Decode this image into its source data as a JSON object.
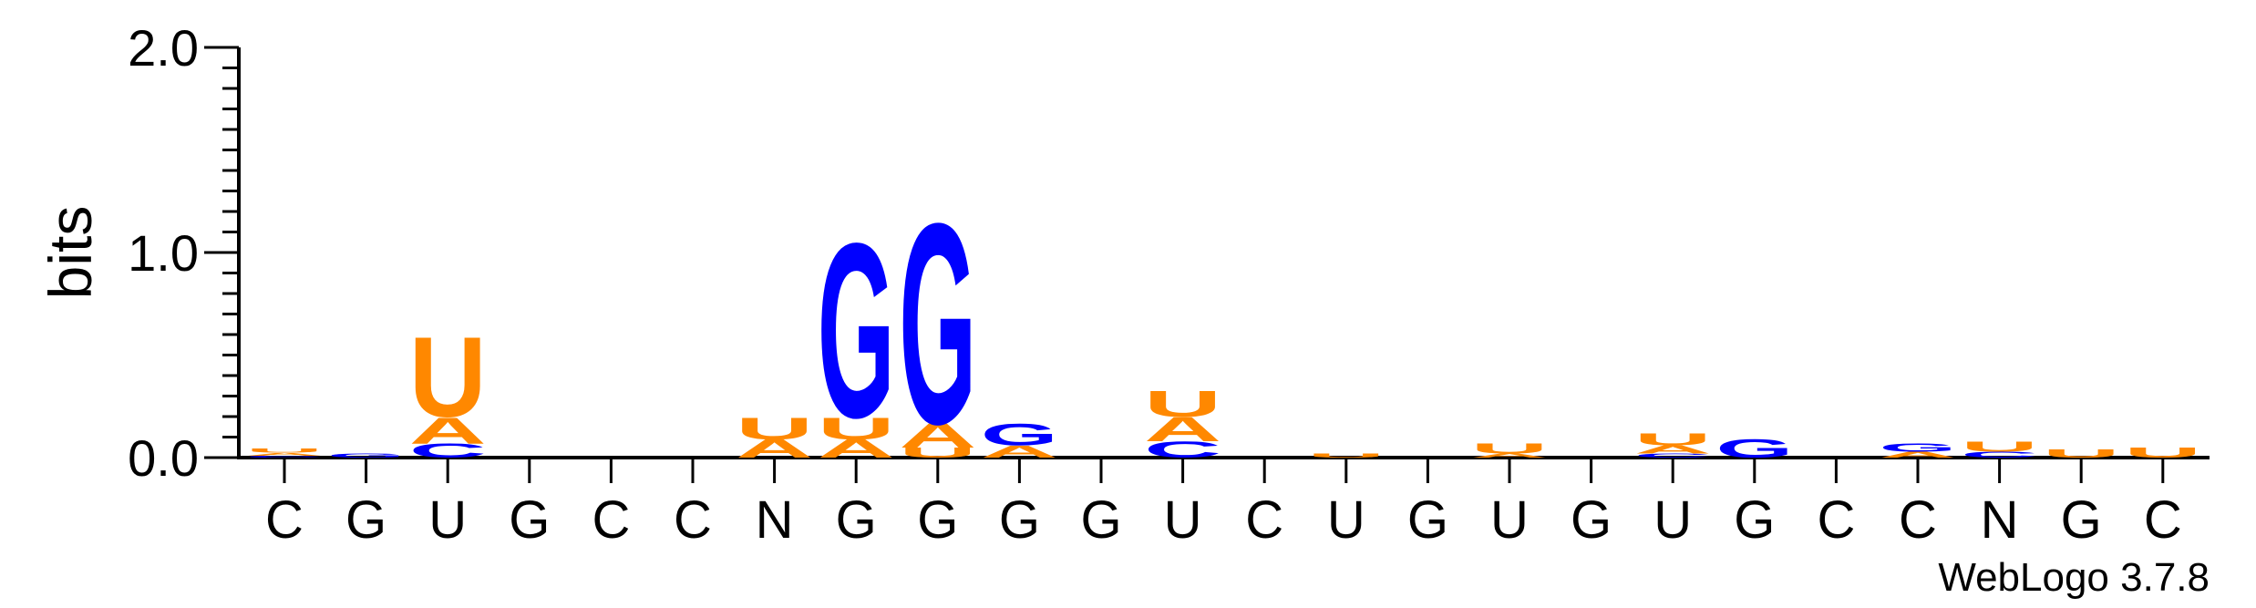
{
  "chart_data": {
    "type": "sequence-logo",
    "ylabel": "bits",
    "ylim": [
      0,
      2.0
    ],
    "yticks": [
      "0.0",
      "1.0",
      "2.0"
    ],
    "colors": {
      "A": "#ff8800",
      "U": "#ff8800",
      "G": "#0000ff",
      "C": "#0000ff"
    },
    "positions": [
      {
        "label": "C",
        "stack": [
          {
            "letter": "C",
            "bits": 0.01
          },
          {
            "letter": "A",
            "bits": 0.015
          },
          {
            "letter": "U",
            "bits": 0.02
          }
        ]
      },
      {
        "label": "G",
        "stack": [
          {
            "letter": "G",
            "bits": 0.02
          }
        ]
      },
      {
        "label": "U",
        "stack": [
          {
            "letter": "C",
            "bits": 0.07
          },
          {
            "letter": "A",
            "bits": 0.13
          },
          {
            "letter": "U",
            "bits": 0.4
          }
        ]
      },
      {
        "label": "G",
        "stack": []
      },
      {
        "label": "C",
        "stack": []
      },
      {
        "label": "C",
        "stack": []
      },
      {
        "label": "N",
        "stack": [
          {
            "letter": "A",
            "bits": 0.09
          },
          {
            "letter": "U",
            "bits": 0.11
          }
        ]
      },
      {
        "label": "G",
        "stack": [
          {
            "letter": "A",
            "bits": 0.09
          },
          {
            "letter": "U",
            "bits": 0.11
          },
          {
            "letter": "G",
            "bits": 0.87
          }
        ]
      },
      {
        "label": "G",
        "stack": [
          {
            "letter": "U",
            "bits": 0.05
          },
          {
            "letter": "A",
            "bits": 0.12
          },
          {
            "letter": "G",
            "bits": 1.0
          }
        ]
      },
      {
        "label": "G",
        "stack": [
          {
            "letter": "A",
            "bits": 0.06
          },
          {
            "letter": "G",
            "bits": 0.11
          }
        ]
      },
      {
        "label": "G",
        "stack": []
      },
      {
        "label": "U",
        "stack": [
          {
            "letter": "C",
            "bits": 0.08
          },
          {
            "letter": "A",
            "bits": 0.12
          },
          {
            "letter": "U",
            "bits": 0.13
          }
        ]
      },
      {
        "label": "C",
        "stack": []
      },
      {
        "label": "U",
        "stack": [
          {
            "letter": "U",
            "bits": 0.02
          }
        ]
      },
      {
        "label": "G",
        "stack": []
      },
      {
        "label": "U",
        "stack": [
          {
            "letter": "A",
            "bits": 0.02
          },
          {
            "letter": "U",
            "bits": 0.05
          }
        ]
      },
      {
        "label": "G",
        "stack": []
      },
      {
        "label": "U",
        "stack": [
          {
            "letter": "C",
            "bits": 0.02
          },
          {
            "letter": "A",
            "bits": 0.04
          },
          {
            "letter": "U",
            "bits": 0.06
          }
        ]
      },
      {
        "label": "G",
        "stack": [
          {
            "letter": "G",
            "bits": 0.09
          }
        ]
      },
      {
        "label": "C",
        "stack": []
      },
      {
        "label": "C",
        "stack": [
          {
            "letter": "A",
            "bits": 0.03
          },
          {
            "letter": "G",
            "bits": 0.04
          }
        ]
      },
      {
        "label": "N",
        "stack": [
          {
            "letter": "C",
            "bits": 0.03
          },
          {
            "letter": "U",
            "bits": 0.05
          }
        ]
      },
      {
        "label": "G",
        "stack": [
          {
            "letter": "U",
            "bits": 0.04
          }
        ]
      },
      {
        "label": "C",
        "stack": [
          {
            "letter": "U",
            "bits": 0.05
          }
        ]
      }
    ]
  },
  "credit": "WebLogo 3.7.8"
}
